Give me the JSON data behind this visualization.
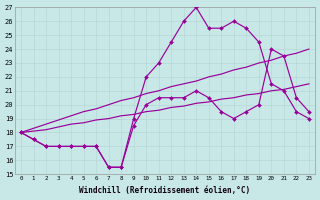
{
  "xlabel": "Windchill (Refroidissement éolien,°C)",
  "bg_color": "#c8e8e8",
  "line_color": "#990099",
  "grid_color": "#b8d8d8",
  "line_peak_high": [
    18.0,
    17.5,
    17.0,
    17.0,
    17.0,
    17.0,
    17.0,
    15.5,
    15.5,
    19.0,
    22.0,
    23.0,
    24.5,
    26.0,
    27.0,
    25.5,
    25.5,
    26.0,
    25.5,
    24.5,
    21.5,
    21.0,
    19.5,
    19.0
  ],
  "line_peak_mid": [
    18.0,
    17.5,
    17.0,
    17.0,
    17.0,
    17.0,
    17.0,
    15.5,
    15.5,
    18.5,
    20.0,
    20.5,
    20.5,
    20.5,
    21.0,
    20.5,
    19.5,
    19.0,
    19.5,
    20.0,
    24.0,
    23.5,
    20.5,
    19.5
  ],
  "line_diag_upper": [
    18.0,
    18.3,
    18.6,
    18.9,
    19.2,
    19.5,
    19.7,
    20.0,
    20.3,
    20.5,
    20.8,
    21.0,
    21.3,
    21.5,
    21.7,
    22.0,
    22.2,
    22.5,
    22.7,
    23.0,
    23.2,
    23.5,
    23.7,
    24.0
  ],
  "line_diag_lower": [
    18.0,
    18.1,
    18.2,
    18.4,
    18.6,
    18.7,
    18.9,
    19.0,
    19.2,
    19.3,
    19.5,
    19.6,
    19.8,
    19.9,
    20.1,
    20.2,
    20.4,
    20.5,
    20.7,
    20.8,
    21.0,
    21.1,
    21.3,
    21.5
  ]
}
